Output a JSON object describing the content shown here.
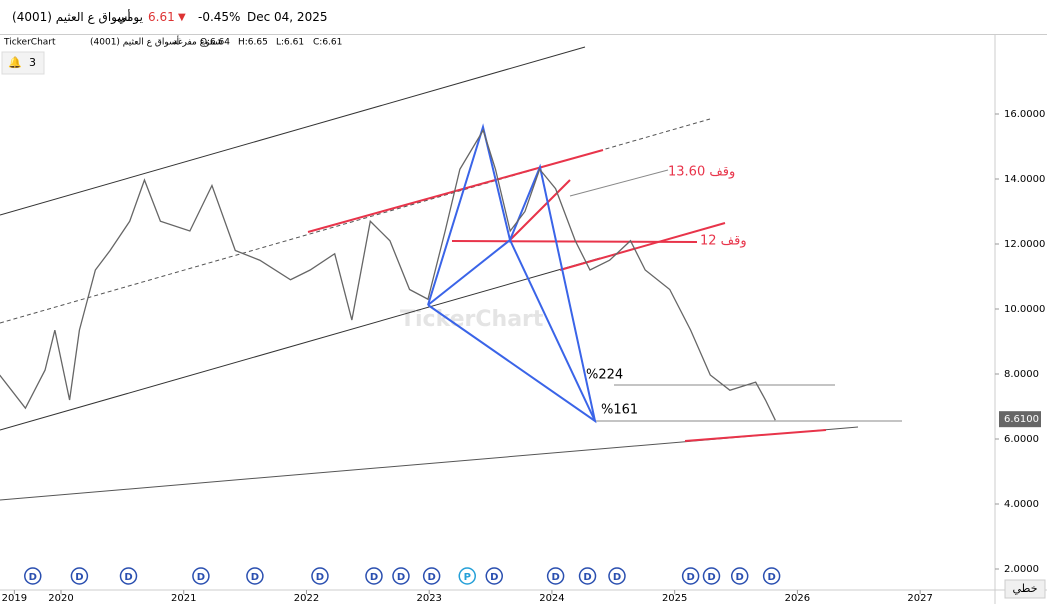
{
  "header": {
    "title": "أسواق ع العثيم (4001)",
    "period": "يومي",
    "last": 6.61,
    "change": {
      "value": -0.45,
      "label": "-0.45%"
    },
    "date": "Dec 04, 2025"
  },
  "legend_line": {
    "brand": "TickerChart",
    "title": "أسواق ع العثيم (4001)",
    "style": "شموع مفرغة",
    "open": {
      "value": 6.64,
      "label": "O:6.64"
    },
    "high": {
      "value": 6.65,
      "label": "H:6.65"
    },
    "low": {
      "value": 6.61,
      "label": "L:6.61"
    },
    "close": {
      "value": 6.61,
      "label": "C:6.61"
    }
  },
  "alerts": 3,
  "chart_data": {
    "type": "line",
    "color": "#666666",
    "x": [
      2019.5,
      2019.71,
      2019.87,
      2019.95,
      2020.07,
      2020.15,
      2020.28,
      2020.4,
      2020.56,
      2020.68,
      2020.81,
      2021.05,
      2021.23,
      2021.42,
      2021.62,
      2021.87,
      2022.03,
      2022.23,
      2022.37,
      2022.52,
      2022.68,
      2022.84,
      2022.99,
      2023.13,
      2023.25,
      2023.44,
      2023.54,
      2023.66,
      2023.78,
      2023.9,
      2024.03,
      2024.19,
      2024.31,
      2024.47,
      2024.64,
      2024.76,
      2024.96,
      2025.13,
      2025.29,
      2025.45,
      2025.66,
      2025.74,
      2025.82
    ],
    "series": [
      {
        "name": "أسواق ع العثيم (4001)",
        "color": "#666666",
        "values": [
          7.97,
          6.95,
          8.12,
          9.35,
          7.2,
          9.35,
          11.2,
          11.8,
          12.7,
          13.97,
          12.7,
          12.4,
          13.8,
          11.8,
          11.5,
          10.9,
          11.2,
          11.7,
          9.66,
          12.7,
          12.1,
          10.6,
          10.3,
          12.4,
          14.3,
          15.5,
          14.3,
          12.4,
          13.0,
          14.3,
          13.7,
          12.1,
          11.2,
          11.5,
          12.1,
          11.2,
          10.6,
          9.35,
          7.97,
          7.5,
          7.75,
          7.2,
          6.58
        ]
      }
    ],
    "xlim": [
      2019.503,
      2027.61
    ],
    "xticks": [
      {
        "value": 2019.62,
        "label": "2019"
      },
      2020,
      2021,
      2022,
      2023,
      2024,
      2025,
      2026,
      2027
    ],
    "ylim": [
      1.354,
      18.4
    ],
    "yticks": [
      {
        "value": 2,
        "label": "2.0000"
      },
      {
        "value": 4,
        "label": "4.0000"
      },
      {
        "value": 6,
        "label": "6.0000"
      },
      {
        "value": 8,
        "label": "8.0000"
      },
      {
        "value": 10,
        "label": "10.0000"
      },
      {
        "value": 12,
        "label": "12.0000"
      },
      {
        "value": 14,
        "label": "14.0000"
      },
      {
        "value": 16,
        "label": "16.0000"
      }
    ],
    "last_price": {
      "value": 6.61,
      "label": "6.6100"
    },
    "events": [
      {
        "x": 2019.77,
        "label": "D"
      },
      {
        "x": 2020.15,
        "label": "D"
      },
      {
        "x": 2020.55,
        "label": "D"
      },
      {
        "x": 2021.14,
        "label": "D"
      },
      {
        "x": 2021.58,
        "label": "D"
      },
      {
        "x": 2022.11,
        "label": "D"
      },
      {
        "x": 2022.55,
        "label": "D"
      },
      {
        "x": 2022.77,
        "label": "D"
      },
      {
        "x": 2023.02,
        "label": "D"
      },
      {
        "x": 2023.31,
        "label": "P"
      },
      {
        "x": 2023.53,
        "label": "D"
      },
      {
        "x": 2024.03,
        "label": "D"
      },
      {
        "x": 2024.29,
        "label": "D"
      },
      {
        "x": 2024.53,
        "label": "D"
      },
      {
        "x": 2025.13,
        "label": "D"
      },
      {
        "x": 2025.3,
        "label": "D"
      },
      {
        "x": 2025.53,
        "label": "D"
      },
      {
        "x": 2025.79,
        "label": "D"
      }
    ],
    "annotations": [
      "وقف 13.60",
      "وقف 12",
      "%224",
      "%161"
    ],
    "watermark": "TickerChart",
    "scale_mode": "خطي"
  }
}
